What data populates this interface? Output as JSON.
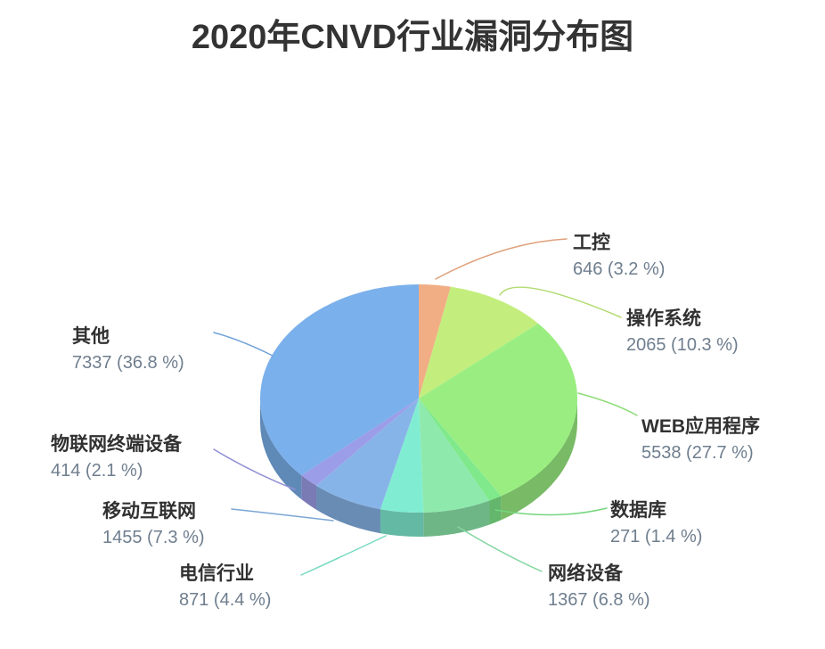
{
  "title": "2020年CNVD行业漏洞分布图",
  "chart_data": {
    "type": "pie",
    "style": "3d",
    "title": "2020年CNVD行业漏洞分布图",
    "legend_position": "none",
    "label_format": "{value} ({pct} %)",
    "total": 19964,
    "slices": [
      {
        "label": "工控",
        "value": 646,
        "pct": "3.2",
        "color": "#F1AE85"
      },
      {
        "label": "操作系统",
        "value": 2065,
        "pct": "10.3",
        "color": "#C3EE7D"
      },
      {
        "label": "WEB应用程序",
        "value": 5538,
        "pct": "27.7",
        "color": "#9AEE81"
      },
      {
        "label": "数据库",
        "value": 271,
        "pct": "1.4",
        "color": "#7FE98B"
      },
      {
        "label": "网络设备",
        "value": 1367,
        "pct": "6.8",
        "color": "#8EE9AD"
      },
      {
        "label": "电信行业",
        "value": 871,
        "pct": "4.4",
        "color": "#80EDD2"
      },
      {
        "label": "移动互联网",
        "value": 1455,
        "pct": "7.3",
        "color": "#87B4E8"
      },
      {
        "label": "物联网终端设备",
        "value": 414,
        "pct": "2.1",
        "color": "#9C9DE8"
      },
      {
        "label": "其他",
        "value": 7337,
        "pct": "36.8",
        "color": "#7AB0EB"
      }
    ],
    "text_colors": {
      "name": "#313131",
      "value": "#6f7e8e",
      "title": "#333333"
    }
  }
}
